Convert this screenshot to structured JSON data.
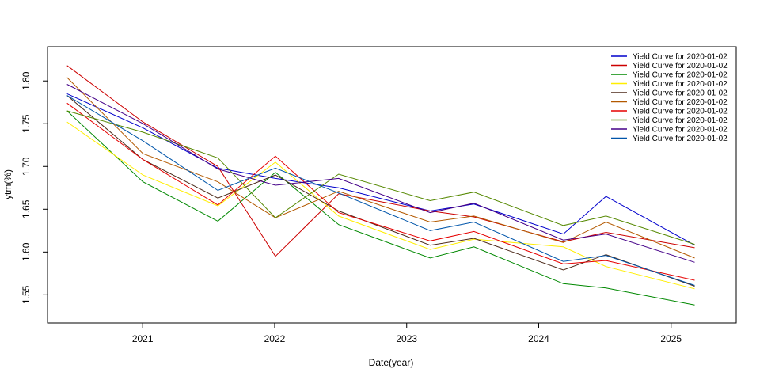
{
  "chart_data": {
    "type": "line",
    "title": "",
    "xlabel": "Date(year)",
    "ylabel": "ytm(%)",
    "x_ticks": [
      "2021",
      "2022",
      "2023",
      "2024",
      "2025"
    ],
    "y_ticks": [
      "1.55",
      "1.60",
      "1.65",
      "1.70",
      "1.75",
      "1.80"
    ],
    "xlim": [
      "2020-04-13",
      "2025-06-30"
    ],
    "ylim": [
      1.517,
      1.84
    ],
    "grid": false,
    "legend_position": "top-right",
    "x": [
      "2020-06-06",
      "2021-01-02",
      "2021-07-28",
      "2022-01-03",
      "2022-06-27",
      "2023-03-07",
      "2023-07-06",
      "2024-03-09",
      "2024-07-05",
      "2025-03-07"
    ],
    "series": [
      {
        "name": "Yield Curve for 2020-01-02",
        "color": "#0000CC",
        "values": [
          1.785,
          1.745,
          1.698,
          1.686,
          1.675,
          1.648,
          1.656,
          1.621,
          1.665,
          1.608
        ]
      },
      {
        "name": "Yield Curve for 2020-01-02",
        "color": "#CC0000",
        "values": [
          1.818,
          1.752,
          1.7,
          1.595,
          1.668,
          1.648,
          1.641,
          1.612,
          1.623,
          1.605
        ]
      },
      {
        "name": "Yield Curve for 2020-01-02",
        "color": "#008800",
        "values": [
          1.765,
          1.682,
          1.636,
          1.693,
          1.632,
          1.593,
          1.606,
          1.563,
          1.558,
          1.538
        ]
      },
      {
        "name": "Yield Curve for 2020-01-02",
        "color": "#FFEE00",
        "values": [
          1.752,
          1.69,
          1.654,
          1.705,
          1.642,
          1.603,
          1.615,
          1.606,
          1.583,
          1.557
        ]
      },
      {
        "name": "Yield Curve for 2020-01-02",
        "color": "#4D2A1A",
        "values": [
          1.783,
          1.708,
          1.663,
          1.69,
          1.648,
          1.608,
          1.616,
          1.579,
          1.597,
          1.56
        ]
      },
      {
        "name": "Yield Curve for 2020-01-02",
        "color": "#B35900",
        "values": [
          1.804,
          1.715,
          1.682,
          1.64,
          1.671,
          1.635,
          1.642,
          1.611,
          1.635,
          1.593
        ]
      },
      {
        "name": "Yield Curve for 2020-01-02",
        "color": "#E60000",
        "values": [
          1.774,
          1.708,
          1.655,
          1.712,
          1.646,
          1.613,
          1.624,
          1.586,
          1.59,
          1.567
        ]
      },
      {
        "name": "Yield Curve for 2020-01-02",
        "color": "#558800",
        "values": [
          1.765,
          1.74,
          1.71,
          1.64,
          1.691,
          1.66,
          1.67,
          1.631,
          1.642,
          1.609
        ]
      },
      {
        "name": "Yield Curve for 2020-01-02",
        "color": "#440088",
        "values": [
          1.796,
          1.75,
          1.697,
          1.678,
          1.686,
          1.646,
          1.657,
          1.614,
          1.621,
          1.588
        ]
      },
      {
        "name": "Yield Curve for 2020-01-02",
        "color": "#0055AA",
        "values": [
          1.783,
          1.73,
          1.672,
          1.698,
          1.669,
          1.625,
          1.635,
          1.589,
          1.596,
          1.561
        ]
      }
    ]
  }
}
